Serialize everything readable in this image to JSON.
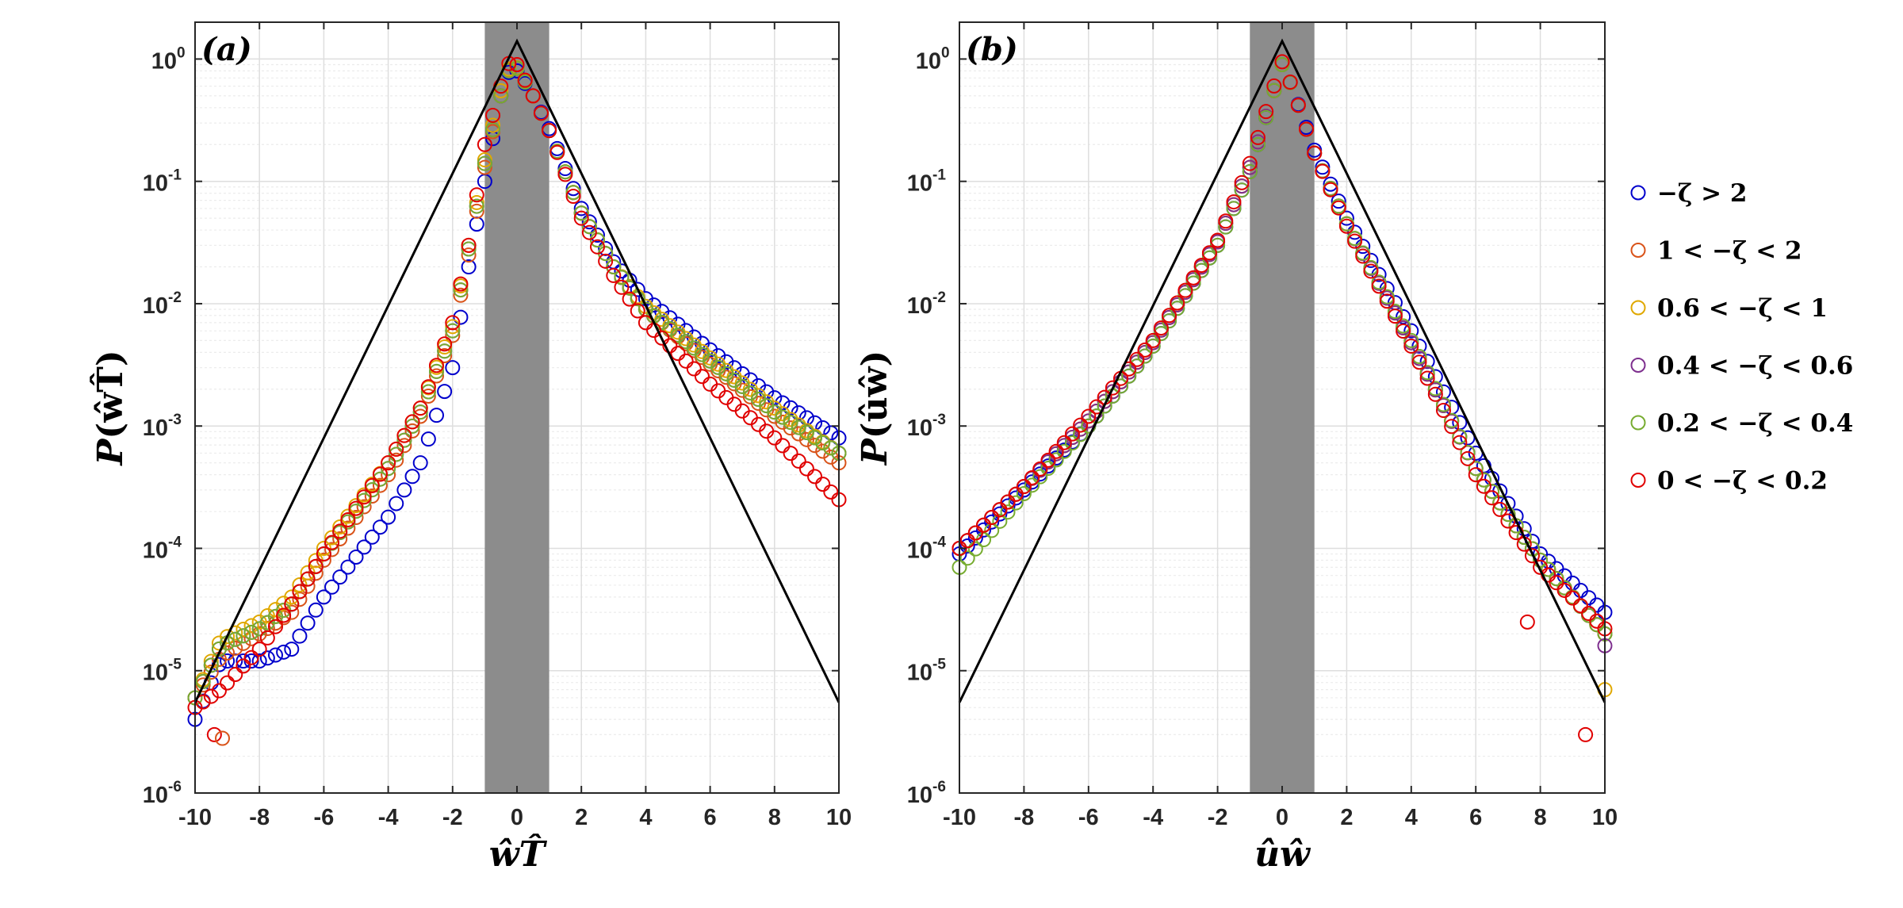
{
  "chart_data": [
    {
      "type": "scatter",
      "panel_label": "(a)",
      "xlabel": "ŵT̂",
      "ylabel_main": "P",
      "ylabel_arg": "(ŵT̂)",
      "yscale": "log",
      "xlim": [
        -10,
        10
      ],
      "ylim": [
        1e-06,
        2
      ],
      "xticks": [
        -10,
        -8,
        -6,
        -4,
        -2,
        0,
        2,
        4,
        6,
        8,
        10
      ],
      "yticks": [
        {
          "value": 1,
          "base": "10",
          "exp": "0"
        },
        {
          "value": 0.1,
          "base": "10",
          "exp": "-1"
        },
        {
          "value": 0.01,
          "base": "10",
          "exp": "-2"
        },
        {
          "value": 0.001,
          "base": "10",
          "exp": "-3"
        },
        {
          "value": 0.0001,
          "base": "10",
          "exp": "-4"
        },
        {
          "value": 1e-05,
          "base": "10",
          "exp": "-5"
        },
        {
          "value": 1e-06,
          "base": "10",
          "exp": "-6"
        }
      ],
      "shaded_band": [
        -1,
        1
      ],
      "reference_line": {
        "peak": 1.4,
        "left_end": 5.5e-06,
        "right_end": 5.5e-06
      },
      "series": [
        {
          "name": "−ζ > 2",
          "anchors": [
            [
              -10,
              4e-06
            ],
            [
              -9.2,
              1.2e-05
            ],
            [
              -8,
              1.2e-05
            ],
            [
              -7,
              1.5e-05
            ],
            [
              -6,
              4e-05
            ],
            [
              -4,
              0.00018
            ],
            [
              -3,
              0.0005
            ],
            [
              -2,
              0.003
            ],
            [
              -1.5,
              0.02
            ],
            [
              -1,
              0.1
            ],
            [
              -0.5,
              0.5
            ],
            [
              -0.2,
              0.85
            ],
            [
              0,
              0.8
            ],
            [
              0.5,
              0.5
            ],
            [
              1,
              0.27
            ],
            [
              2,
              0.06
            ],
            [
              3,
              0.022
            ],
            [
              4,
              0.011
            ],
            [
              6,
              0.0042
            ],
            [
              8,
              0.0017
            ],
            [
              10,
              0.0008
            ]
          ]
        },
        {
          "name": "1 < −ζ < 2",
          "anchors": [
            [
              -10,
              6e-06
            ],
            [
              -9.2,
              1.3e-05
            ],
            [
              -8,
              2e-05
            ],
            [
              -7,
              3e-05
            ],
            [
              -6,
              8e-05
            ],
            [
              -4,
              0.0004
            ],
            [
              -3,
              0.0012
            ],
            [
              -2,
              0.0055
            ],
            [
              -1.5,
              0.025
            ],
            [
              -1,
              0.13
            ],
            [
              -0.5,
              0.5
            ],
            [
              -0.2,
              0.9
            ],
            [
              0,
              0.85
            ],
            [
              0.5,
              0.5
            ],
            [
              1,
              0.26
            ],
            [
              2,
              0.055
            ],
            [
              3,
              0.02
            ],
            [
              4,
              0.009
            ],
            [
              6,
              0.0032
            ],
            [
              8,
              0.0012
            ],
            [
              10,
              0.0005
            ]
          ]
        },
        {
          "name": "0.6 < −ζ < 1",
          "anchors": [
            [
              -10,
              6e-06
            ],
            [
              -9.2,
              1.8e-05
            ],
            [
              -8,
              2.5e-05
            ],
            [
              -7,
              4e-05
            ],
            [
              -6,
              0.0001
            ],
            [
              -4,
              0.0005
            ],
            [
              -3,
              0.0014
            ],
            [
              -2,
              0.0065
            ],
            [
              -1.5,
              0.03
            ],
            [
              -1,
              0.15
            ],
            [
              -0.5,
              0.55
            ],
            [
              -0.2,
              0.9
            ],
            [
              0,
              0.85
            ],
            [
              0.5,
              0.5
            ],
            [
              1,
              0.26
            ],
            [
              2,
              0.055
            ],
            [
              3,
              0.02
            ],
            [
              4,
              0.0095
            ],
            [
              6,
              0.0036
            ],
            [
              8,
              0.0014
            ],
            [
              10,
              0.0006
            ]
          ]
        },
        {
          "name": "0.4 < −ζ < 0.6",
          "anchors": [
            [
              -10,
              6e-06
            ],
            [
              -9.2,
              1.6e-05
            ],
            [
              -8,
              2.2e-05
            ],
            [
              -7,
              3.5e-05
            ],
            [
              -6,
              9e-05
            ],
            [
              -4,
              0.00045
            ],
            [
              -3,
              0.0013
            ],
            [
              -2,
              0.006
            ],
            [
              -1.5,
              0.028
            ],
            [
              -1,
              0.14
            ],
            [
              -0.5,
              0.5
            ],
            [
              -0.2,
              0.88
            ],
            [
              0,
              0.84
            ],
            [
              0.5,
              0.5
            ],
            [
              1,
              0.26
            ],
            [
              2,
              0.055
            ],
            [
              3,
              0.02
            ],
            [
              4,
              0.009
            ],
            [
              6,
              0.0034
            ],
            [
              8,
              0.0013
            ],
            [
              10,
              0.0006
            ]
          ]
        },
        {
          "name": "0.2 < −ζ < 0.4",
          "anchors": [
            [
              -10,
              6e-06
            ],
            [
              -9.2,
              1.6e-05
            ],
            [
              -8,
              2.2e-05
            ],
            [
              -7,
              3.5e-05
            ],
            [
              -6,
              9e-05
            ],
            [
              -4,
              0.00045
            ],
            [
              -3,
              0.0013
            ],
            [
              -2,
              0.006
            ],
            [
              -1.5,
              0.028
            ],
            [
              -1,
              0.14
            ],
            [
              -0.5,
              0.5
            ],
            [
              -0.2,
              0.88
            ],
            [
              0,
              0.84
            ],
            [
              0.5,
              0.5
            ],
            [
              1,
              0.26
            ],
            [
              2,
              0.055
            ],
            [
              3,
              0.02
            ],
            [
              4,
              0.009
            ],
            [
              6,
              0.0034
            ],
            [
              8,
              0.0013
            ],
            [
              10,
              0.0006
            ]
          ]
        },
        {
          "name": "0 < −ζ < 0.2",
          "anchors": [
            [
              -10,
              5e-06
            ],
            [
              -9.2,
              7e-06
            ],
            [
              -8,
              1.5e-05
            ],
            [
              -7,
              3.5e-05
            ],
            [
              -6,
              9e-05
            ],
            [
              -4,
              0.0005
            ],
            [
              -3,
              0.0014
            ],
            [
              -2,
              0.007
            ],
            [
              -1.5,
              0.03
            ],
            [
              -1,
              0.2
            ],
            [
              -0.5,
              0.6
            ],
            [
              -0.2,
              1.0
            ],
            [
              0,
              0.9
            ],
            [
              0.5,
              0.5
            ],
            [
              1,
              0.26
            ],
            [
              2,
              0.05
            ],
            [
              3,
              0.017
            ],
            [
              4,
              0.007
            ],
            [
              6,
              0.0022
            ],
            [
              8,
              0.0008
            ],
            [
              10,
              0.00025
            ]
          ]
        }
      ],
      "isolated_points": [
        {
          "series": 5,
          "x": -9.4,
          "y": 3e-06
        },
        {
          "series": 1,
          "x": -9.15,
          "y": 2.8e-06
        }
      ]
    },
    {
      "type": "scatter",
      "panel_label": "(b)",
      "xlabel": "ûŵ",
      "ylabel_main": "P",
      "ylabel_arg": "(ûŵ)",
      "yscale": "log",
      "xlim": [
        -10,
        10
      ],
      "ylim": [
        1e-06,
        2
      ],
      "xticks": [
        -10,
        -8,
        -6,
        -4,
        -2,
        0,
        2,
        4,
        6,
        8,
        10
      ],
      "yticks": [
        {
          "value": 1,
          "base": "10",
          "exp": "0"
        },
        {
          "value": 0.1,
          "base": "10",
          "exp": "-1"
        },
        {
          "value": 0.01,
          "base": "10",
          "exp": "-2"
        },
        {
          "value": 0.001,
          "base": "10",
          "exp": "-3"
        },
        {
          "value": 0.0001,
          "base": "10",
          "exp": "-4"
        },
        {
          "value": 1e-05,
          "base": "10",
          "exp": "-5"
        },
        {
          "value": 1e-06,
          "base": "10",
          "exp": "-6"
        }
      ],
      "shaded_band": [
        -1,
        1
      ],
      "reference_line": {
        "peak": 1.4,
        "left_end": 5.5e-06,
        "right_end": 5.5e-06
      },
      "series": [
        {
          "name": "−ζ > 2",
          "anchors": [
            [
              -10,
              9e-05
            ],
            [
              -8,
              0.0003
            ],
            [
              -6,
              0.001
            ],
            [
              -4,
              0.0045
            ],
            [
              -2,
              0.03
            ],
            [
              -1,
              0.12
            ],
            [
              -0.3,
              0.5
            ],
            [
              0,
              0.9
            ],
            [
              0.3,
              0.6
            ],
            [
              1,
              0.18
            ],
            [
              2,
              0.05
            ],
            [
              4,
              0.006
            ],
            [
              6,
              0.0006
            ],
            [
              8,
              9e-05
            ],
            [
              10,
              3e-05
            ]
          ]
        },
        {
          "name": "1 < −ζ < 2",
          "anchors": [
            [
              -10,
              0.0001
            ],
            [
              -8,
              0.00032
            ],
            [
              -6,
              0.0011
            ],
            [
              -4,
              0.0048
            ],
            [
              -2,
              0.032
            ],
            [
              -1,
              0.13
            ],
            [
              -0.3,
              0.5
            ],
            [
              0,
              0.9
            ],
            [
              0.3,
              0.6
            ],
            [
              1,
              0.17
            ],
            [
              2,
              0.045
            ],
            [
              4,
              0.0048
            ],
            [
              6,
              0.00045
            ],
            [
              8,
              8e-05
            ],
            [
              10,
              2e-05
            ]
          ]
        },
        {
          "name": "0.6 < −ζ < 1",
          "anchors": [
            [
              -10,
              0.0001
            ],
            [
              -8,
              0.00032
            ],
            [
              -6,
              0.0011
            ],
            [
              -4,
              0.0048
            ],
            [
              -2,
              0.032
            ],
            [
              -1,
              0.13
            ],
            [
              -0.3,
              0.5
            ],
            [
              0,
              0.9
            ],
            [
              0.3,
              0.6
            ],
            [
              1,
              0.17
            ],
            [
              2,
              0.045
            ],
            [
              4,
              0.0048
            ],
            [
              6,
              0.00045
            ],
            [
              8,
              8e-05
            ],
            [
              10,
              2e-05
            ]
          ]
        },
        {
          "name": "0.4 < −ζ < 0.6",
          "anchors": [
            [
              -10,
              0.0001
            ],
            [
              -8,
              0.00032
            ],
            [
              -6,
              0.0011
            ],
            [
              -4,
              0.0048
            ],
            [
              -2,
              0.032
            ],
            [
              -1,
              0.13
            ],
            [
              -0.3,
              0.5
            ],
            [
              0,
              0.9
            ],
            [
              0.3,
              0.6
            ],
            [
              1,
              0.17
            ],
            [
              2,
              0.045
            ],
            [
              4,
              0.0048
            ],
            [
              6,
              0.00045
            ],
            [
              8,
              8e-05
            ],
            [
              10,
              2e-05
            ]
          ]
        },
        {
          "name": "0.2 < −ζ < 0.4",
          "anchors": [
            [
              -10,
              7e-05
            ],
            [
              -8,
              0.00028
            ],
            [
              -6,
              0.001
            ],
            [
              -4,
              0.0045
            ],
            [
              -2,
              0.03
            ],
            [
              -1,
              0.12
            ],
            [
              -0.3,
              0.5
            ],
            [
              0,
              0.9
            ],
            [
              0.3,
              0.6
            ],
            [
              1,
              0.17
            ],
            [
              2,
              0.045
            ],
            [
              4,
              0.005
            ],
            [
              6,
              0.00045
            ],
            [
              8,
              8e-05
            ],
            [
              10,
              2e-05
            ]
          ]
        },
        {
          "name": "0 < −ζ < 0.2",
          "anchors": [
            [
              -10,
              0.0001
            ],
            [
              -8,
              0.00032
            ],
            [
              -6,
              0.0012
            ],
            [
              -4,
              0.005
            ],
            [
              -2,
              0.033
            ],
            [
              -1,
              0.14
            ],
            [
              -0.3,
              0.55
            ],
            [
              0,
              0.95
            ],
            [
              0.3,
              0.6
            ],
            [
              1,
              0.17
            ],
            [
              2,
              0.043
            ],
            [
              4,
              0.0045
            ],
            [
              6,
              0.0004
            ],
            [
              8,
              7e-05
            ],
            [
              10,
              2.2e-05
            ]
          ]
        }
      ],
      "isolated_points": [
        {
          "series": 5,
          "x": 9.4,
          "y": 3e-06
        },
        {
          "series": 2,
          "x": 10,
          "y": 7e-06
        },
        {
          "series": 5,
          "x": 7.6,
          "y": 2.5e-05
        },
        {
          "series": 3,
          "x": 10,
          "y": 1.6e-05
        }
      ]
    }
  ],
  "legend": {
    "entries": [
      {
        "label": "−ζ > 2",
        "color": "#0000cc"
      },
      {
        "label": "1 < −ζ < 2",
        "color": "#d95319"
      },
      {
        "label": "0.6 < −ζ < 1",
        "color": "#e0a800"
      },
      {
        "label": "0.4 < −ζ < 0.6",
        "color": "#7e2f8e"
      },
      {
        "label": "0.2 < −ζ < 0.4",
        "color": "#77ac30"
      },
      {
        "label": "0 < −ζ < 0.2",
        "color": "#e00000"
      }
    ]
  },
  "colors": {
    "shade": "#8c8c8c",
    "grid_major": "#dedede",
    "grid_minor": "#ececec",
    "axis": "#262626",
    "reference_line": "#000000"
  }
}
